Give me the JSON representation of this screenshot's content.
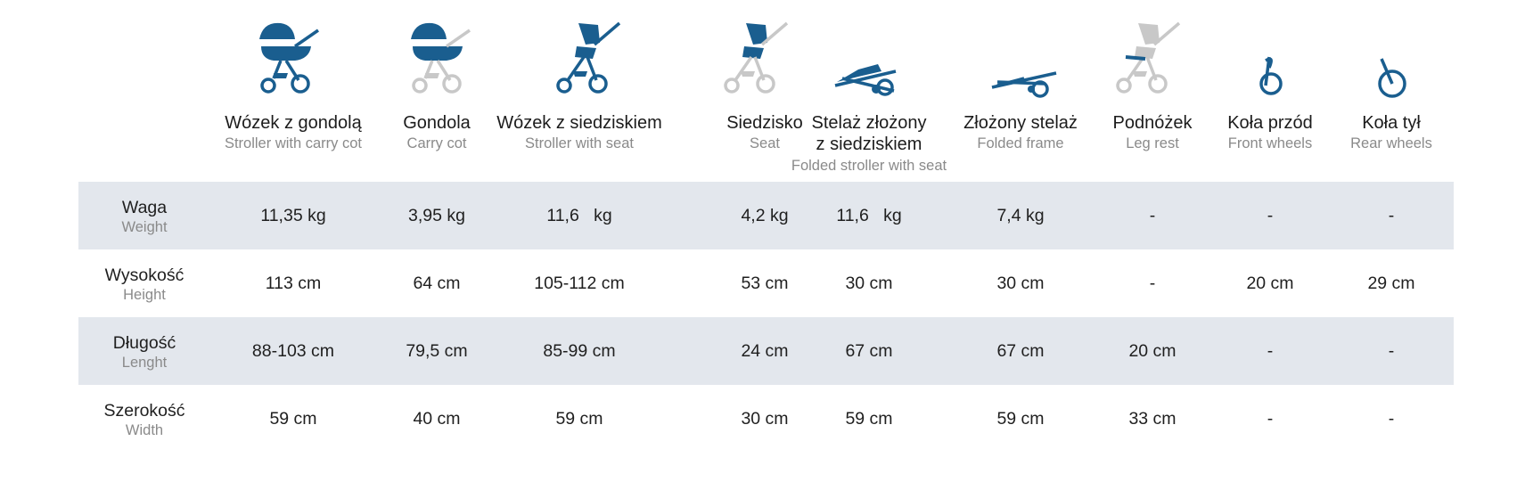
{
  "colors": {
    "accent": "#1a5e8f",
    "inactive": "#c8c8c8",
    "row_shade": "#e3e7ed",
    "subtext": "#8a8a8a"
  },
  "columns": [
    {
      "pl": "Wózek z gondolą",
      "en": "Stroller with carry cot",
      "icon": "stroller-with-carry-cot-icon"
    },
    {
      "pl": "Gondola",
      "en": "Carry cot",
      "icon": "carry-cot-icon"
    },
    {
      "pl": "Wózek z siedziskiem",
      "en": "Stroller with seat",
      "icon": "stroller-with-seat-icon"
    },
    {
      "pl": "Siedzisko",
      "en": "Seat",
      "icon": "seat-icon"
    },
    {
      "pl": "Stelaż złożony",
      "pl2": "z siedziskiem",
      "en": "Folded stroller with seat",
      "icon": "folded-stroller-with-seat-icon"
    },
    {
      "pl": "Złożony stelaż",
      "en": "Folded frame",
      "icon": "folded-frame-icon"
    },
    {
      "pl": "Podnóżek",
      "en": "Leg rest",
      "icon": "leg-rest-icon"
    },
    {
      "pl": "Koła przód",
      "en": "Front wheels",
      "icon": "front-wheel-icon"
    },
    {
      "pl": "Koła tył",
      "en": "Rear wheels",
      "icon": "rear-wheel-icon"
    }
  ],
  "rows": [
    {
      "pl": "Waga",
      "en": "Weight",
      "values": [
        "11,35 kg",
        "3,95 kg",
        "11,6   kg",
        "4,2 kg",
        "11,6   kg",
        "7,4 kg",
        "-",
        "-",
        "-"
      ]
    },
    {
      "pl": "Wysokość",
      "en": "Height",
      "values": [
        "113 cm",
        "64 cm",
        "105-112 cm",
        "53 cm",
        "30 cm",
        "30 cm",
        "-",
        "20 cm",
        "29 cm"
      ]
    },
    {
      "pl": "Długość",
      "en": "Lenght",
      "values": [
        "88-103 cm",
        "79,5 cm",
        "85-99 cm",
        "24 cm",
        "67 cm",
        "67 cm",
        "20 cm",
        "-",
        "-"
      ]
    },
    {
      "pl": "Szerokość",
      "en": "Width",
      "values": [
        "59 cm",
        "40 cm",
        "59 cm",
        "30 cm",
        "59 cm",
        "59 cm",
        "33 cm",
        "-",
        "-"
      ]
    }
  ]
}
